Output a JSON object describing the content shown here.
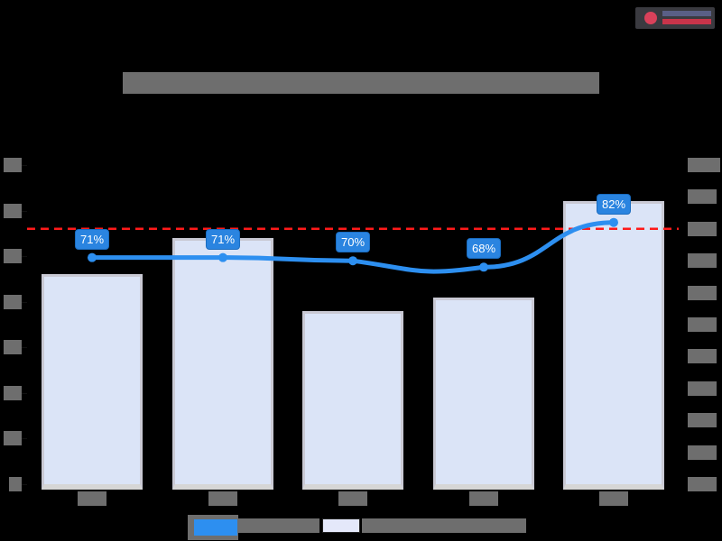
{
  "header": {
    "title": "[redacted title]",
    "logo": "brand-logo"
  },
  "axes": {
    "left_ticks": [
      "[t0]",
      "[t1]",
      "[t2]",
      "[t3]",
      "[t4]",
      "[t5]",
      "[t6]",
      "[t7]"
    ],
    "right_ticks": [
      "0%",
      "10%",
      "20%",
      "30%",
      "40%",
      "50%",
      "60%",
      "70%",
      "80%",
      "90%",
      "100%"
    ],
    "x_labels": [
      "[cat1]",
      "[cat2]",
      "[cat3]",
      "[cat4]",
      "[cat5]"
    ]
  },
  "legend": {
    "line_label": "[redacted series label]",
    "bar_label": "[redacted series label]"
  },
  "colors": {
    "line": "#2d8ff0",
    "bar_fill": "#dbe4f7",
    "target_line": "#ff1a1a",
    "label_bg": "#2a84e0",
    "background": "#000000"
  },
  "chart_data": {
    "type": "bar+line",
    "title": "[redacted]",
    "categories": [
      "[cat1]",
      "[cat2]",
      "[cat3]",
      "[cat4]",
      "[cat5]"
    ],
    "series": [
      {
        "name": "[bar series]",
        "type": "bar",
        "axis": "left",
        "values": [
          4.6,
          5.4,
          3.8,
          4.1,
          6.2
        ],
        "unit_note": "values in left-axis tick steps (tick labels redacted)"
      },
      {
        "name": "[line series]",
        "type": "line",
        "axis": "right",
        "values": [
          71,
          71,
          70,
          68,
          82
        ],
        "labels": [
          "71%",
          "71%",
          "70%",
          "68%",
          "82%"
        ]
      }
    ],
    "reference_lines": [
      {
        "axis": "right",
        "value": 80,
        "style": "dashed",
        "color": "#ff1a1a"
      }
    ],
    "ylim_left": [
      0,
      7
    ],
    "ylim_right": [
      0,
      100
    ],
    "legend_position": "bottom",
    "grid": false
  }
}
